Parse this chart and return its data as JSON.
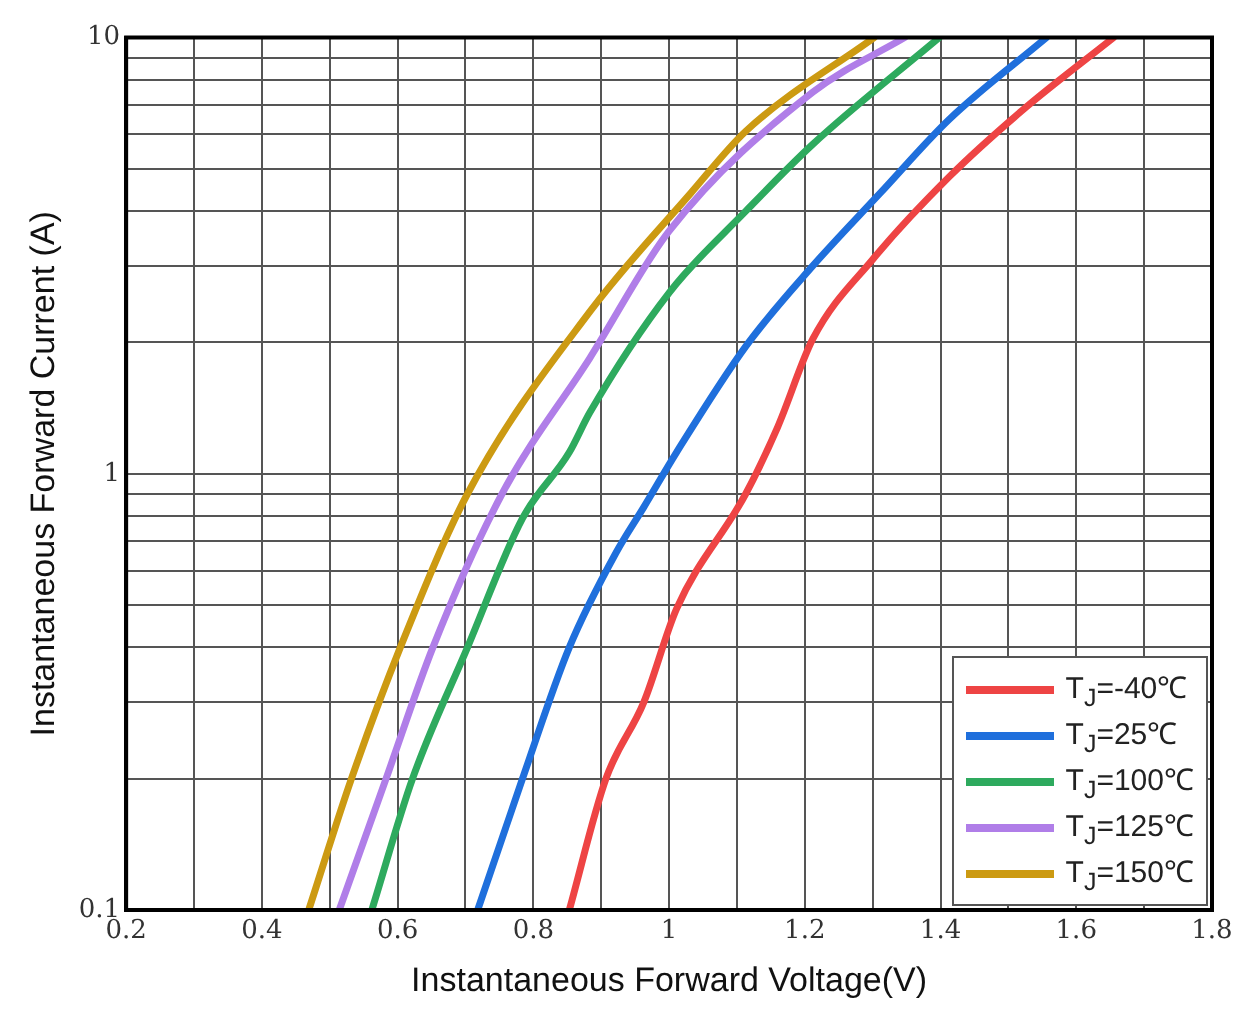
{
  "chart_data": {
    "type": "line",
    "xlabel": "Instantaneous Forward Voltage(V)",
    "ylabel": "Instantaneous Forward Current (A)",
    "xlim": [
      0.2,
      1.8
    ],
    "xticks": [
      0.2,
      {
        "value": 0.3,
        "label": null
      },
      0.4,
      {
        "value": 0.5,
        "label": null
      },
      0.6,
      {
        "value": 0.7,
        "label": null
      },
      0.8,
      {
        "value": 0.9,
        "label": null
      },
      1.0,
      {
        "value": 1.1,
        "label": null
      },
      1.2,
      {
        "value": 1.3,
        "label": null
      },
      1.4,
      {
        "value": 1.5,
        "label": null
      },
      1.6,
      {
        "value": 1.7,
        "label": null
      },
      1.8
    ],
    "ylim": [
      0.1,
      10
    ],
    "yticks": [
      0.1,
      {
        "value": 0.2,
        "label": null
      },
      {
        "value": 0.3,
        "label": null
      },
      {
        "value": 0.4,
        "label": null
      },
      {
        "value": 0.5,
        "label": null
      },
      {
        "value": 0.6,
        "label": null
      },
      {
        "value": 0.7,
        "label": null
      },
      {
        "value": 0.8,
        "label": null
      },
      {
        "value": 0.9,
        "label": null
      },
      1,
      {
        "value": 2,
        "label": null
      },
      {
        "value": 3,
        "label": null
      },
      {
        "value": 4,
        "label": null
      },
      {
        "value": 5,
        "label": null
      },
      {
        "value": 6,
        "label": null
      },
      {
        "value": 7,
        "label": null
      },
      {
        "value": 8,
        "label": null
      },
      {
        "value": 9,
        "label": null
      },
      10
    ],
    "log": "y",
    "grid": true,
    "legend": "bottom right",
    "marker": "none",
    "line_style": "solid",
    "series": [
      {
        "name": "T$_{J}$=-40℃",
        "color": "#ee4444",
        "x": [
          0.853,
          0.907,
          0.963,
          1.011,
          1.113,
          1.16,
          1.212,
          1.3,
          1.413,
          1.52,
          1.655
        ],
        "values": [
          0.1,
          0.2,
          0.3,
          0.49,
          0.9,
          1.28,
          2.04,
          3.1,
          4.8,
          6.8,
          10
        ]
      },
      {
        "name": "T$_{J}$=25℃",
        "color": "#1f6fdc",
        "x": [
          0.718,
          0.784,
          0.853,
          0.922,
          0.963,
          1.011,
          1.113,
          1.212,
          1.311,
          1.413,
          1.556
        ],
        "values": [
          0.1,
          0.2,
          0.4,
          0.66,
          0.84,
          1.12,
          1.96,
          3.0,
          4.4,
          6.5,
          10
        ]
      },
      {
        "name": "T$_{J}$=100℃",
        "color": "#2eaa5e",
        "x": [
          0.562,
          0.622,
          0.703,
          0.784,
          0.853,
          0.883,
          1.0,
          1.113,
          1.212,
          1.398
        ],
        "values": [
          0.1,
          0.2,
          0.4,
          0.79,
          1.12,
          1.38,
          2.6,
          4.0,
          5.7,
          10
        ]
      },
      {
        "name": "T$_{J}$=125℃",
        "color": "#b07ee8",
        "x": [
          0.514,
          0.583,
          0.652,
          0.754,
          0.883,
          1.0,
          1.212,
          1.347
        ],
        "values": [
          0.1,
          0.2,
          0.4,
          0.9,
          1.84,
          3.6,
          7.5,
          10
        ]
      },
      {
        "name": "T$_{J}$=150℃",
        "color": "#cc9a12",
        "x": [
          0.469,
          0.532,
          0.604,
          0.703,
          0.883,
          1.032,
          1.113,
          1.302
        ],
        "values": [
          0.1,
          0.2,
          0.4,
          0.9,
          2.35,
          4.4,
          6.1,
          10
        ]
      }
    ]
  }
}
